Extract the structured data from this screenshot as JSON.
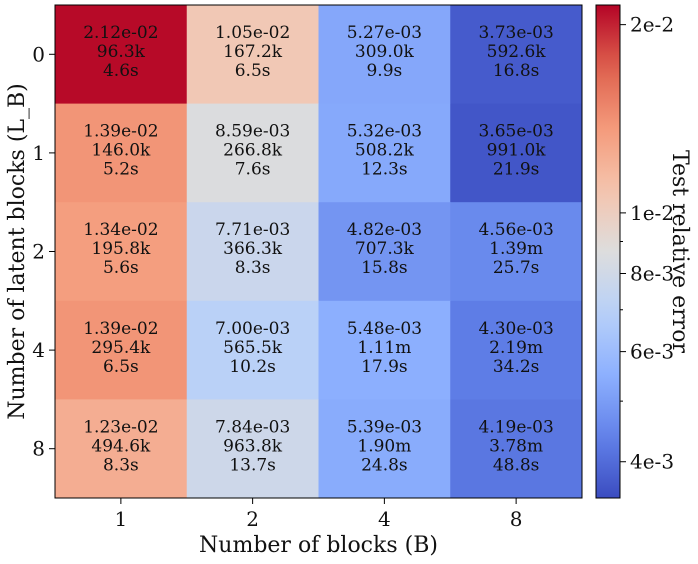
{
  "chart_data": {
    "type": "heatmap",
    "xlabel": "Number of blocks (B)",
    "ylabel": "Number of latent blocks (L_B)",
    "x_categories": [
      "1",
      "2",
      "4",
      "8"
    ],
    "y_categories": [
      "0",
      "1",
      "2",
      "4",
      "8"
    ],
    "colorbar": {
      "label": "Test relative error",
      "scale": "log",
      "range": [
        0.0035,
        0.0215
      ],
      "ticks": [
        {
          "value": 0.02,
          "label": "2e-2"
        },
        {
          "value": 0.01,
          "label": "1e-2"
        },
        {
          "value": 0.008,
          "label": "8e-3"
        },
        {
          "value": 0.006,
          "label": "6e-3"
        },
        {
          "value": 0.004,
          "label": "4e-3"
        }
      ],
      "minor_ticks": [
        0.009,
        0.007,
        0.005
      ],
      "colormap": "coolwarm"
    },
    "cells": [
      [
        {
          "error": 0.0212,
          "error_label": "2.12e-02",
          "params": "96.3k",
          "time": "4.6s"
        },
        {
          "error": 0.0105,
          "error_label": "1.05e-02",
          "params": "167.2k",
          "time": "6.5s"
        },
        {
          "error": 0.00527,
          "error_label": "5.27e-03",
          "params": "309.0k",
          "time": "9.9s"
        },
        {
          "error": 0.00373,
          "error_label": "3.73e-03",
          "params": "592.6k",
          "time": "16.8s"
        }
      ],
      [
        {
          "error": 0.0139,
          "error_label": "1.39e-02",
          "params": "146.0k",
          "time": "5.2s"
        },
        {
          "error": 0.00859,
          "error_label": "8.59e-03",
          "params": "266.8k",
          "time": "7.6s"
        },
        {
          "error": 0.00532,
          "error_label": "5.32e-03",
          "params": "508.2k",
          "time": "12.3s"
        },
        {
          "error": 0.00365,
          "error_label": "3.65e-03",
          "params": "991.0k",
          "time": "21.9s"
        }
      ],
      [
        {
          "error": 0.0134,
          "error_label": "1.34e-02",
          "params": "195.8k",
          "time": "5.6s"
        },
        {
          "error": 0.00771,
          "error_label": "7.71e-03",
          "params": "366.3k",
          "time": "8.3s"
        },
        {
          "error": 0.00482,
          "error_label": "4.82e-03",
          "params": "707.3k",
          "time": "15.8s"
        },
        {
          "error": 0.00456,
          "error_label": "4.56e-03",
          "params": "1.39m",
          "time": "25.7s"
        }
      ],
      [
        {
          "error": 0.0139,
          "error_label": "1.39e-02",
          "params": "295.4k",
          "time": "6.5s"
        },
        {
          "error": 0.007,
          "error_label": "7.00e-03",
          "params": "565.5k",
          "time": "10.2s"
        },
        {
          "error": 0.00548,
          "error_label": "5.48e-03",
          "params": "1.11m",
          "time": "17.9s"
        },
        {
          "error": 0.0043,
          "error_label": "4.30e-03",
          "params": "2.19m",
          "time": "34.2s"
        }
      ],
      [
        {
          "error": 0.0123,
          "error_label": "1.23e-02",
          "params": "494.6k",
          "time": "8.3s"
        },
        {
          "error": 0.00784,
          "error_label": "7.84e-03",
          "params": "963.8k",
          "time": "13.7s"
        },
        {
          "error": 0.00539,
          "error_label": "5.39e-03",
          "params": "1.90m",
          "time": "24.8s"
        },
        {
          "error": 0.00419,
          "error_label": "4.19e-03",
          "params": "3.78m",
          "time": "48.8s"
        }
      ]
    ]
  }
}
